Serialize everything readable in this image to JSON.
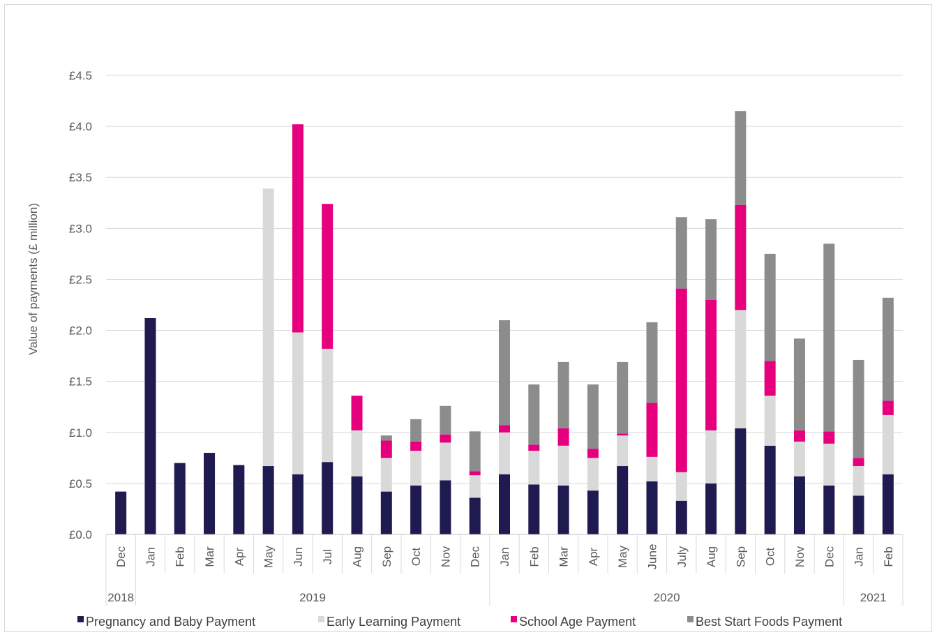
{
  "chart_data": {
    "type": "bar",
    "stacked": true,
    "ylabel": "Value of payments (£ million)",
    "ylim": [
      0,
      4.5
    ],
    "y_ticks": [
      "£0.0",
      "£0.5",
      "£1.0",
      "£1.5",
      "£2.0",
      "£2.5",
      "£3.0",
      "£3.5",
      "£4.0",
      "£4.5"
    ],
    "grid": true,
    "legend_position": "bottom",
    "categories": [
      "Dec",
      "Jan",
      "Feb",
      "Mar",
      "Apr",
      "May",
      "Jun",
      "Jul",
      "Aug",
      "Sep",
      "Oct",
      "Nov",
      "Dec",
      "Jan",
      "Feb",
      "Mar",
      "Apr",
      "May",
      "June",
      "July",
      "Aug",
      "Sep",
      "Oct",
      "Nov",
      "Dec",
      "Jan",
      "Feb"
    ],
    "year_groups": [
      {
        "label": "2018",
        "start": 0,
        "end": 0
      },
      {
        "label": "2019",
        "start": 1,
        "end": 12
      },
      {
        "label": "2020",
        "start": 13,
        "end": 24
      },
      {
        "label": "2021",
        "start": 25,
        "end": 26
      }
    ],
    "series": [
      {
        "name": "Pregnancy and Baby Payment",
        "color": "#1f1a4f",
        "values": [
          0.42,
          2.12,
          0.7,
          0.8,
          0.68,
          0.67,
          0.59,
          0.71,
          0.57,
          0.42,
          0.48,
          0.53,
          0.36,
          0.59,
          0.49,
          0.48,
          0.43,
          0.67,
          0.52,
          0.33,
          0.5,
          1.04,
          0.87,
          0.57,
          0.48,
          0.38,
          0.59
        ]
      },
      {
        "name": "Early Learning Payment",
        "color": "#d9d9d9",
        "values": [
          0,
          0,
          0,
          0,
          0,
          2.72,
          1.39,
          1.11,
          0.45,
          0.33,
          0.34,
          0.37,
          0.22,
          0.41,
          0.33,
          0.39,
          0.32,
          0.3,
          0.24,
          0.28,
          0.52,
          1.16,
          0.49,
          0.34,
          0.41,
          0.29,
          0.58
        ]
      },
      {
        "name": "School Age Payment",
        "color": "#e6007e",
        "values": [
          0,
          0,
          0,
          0,
          0,
          0,
          2.04,
          1.42,
          0.34,
          0.17,
          0.09,
          0.08,
          0.04,
          0.07,
          0.06,
          0.17,
          0.09,
          0.02,
          0.53,
          1.8,
          1.28,
          1.03,
          0.34,
          0.11,
          0.12,
          0.08,
          0.14
        ]
      },
      {
        "name": "Best Start Foods Payment",
        "color": "#8c8c8c",
        "values": [
          0,
          0,
          0,
          0,
          0,
          0,
          0,
          0,
          0,
          0.05,
          0.22,
          0.28,
          0.39,
          1.03,
          0.59,
          0.65,
          0.63,
          0.7,
          0.79,
          0.7,
          0.79,
          0.92,
          1.05,
          0.9,
          1.84,
          0.96,
          1.01
        ]
      }
    ]
  }
}
